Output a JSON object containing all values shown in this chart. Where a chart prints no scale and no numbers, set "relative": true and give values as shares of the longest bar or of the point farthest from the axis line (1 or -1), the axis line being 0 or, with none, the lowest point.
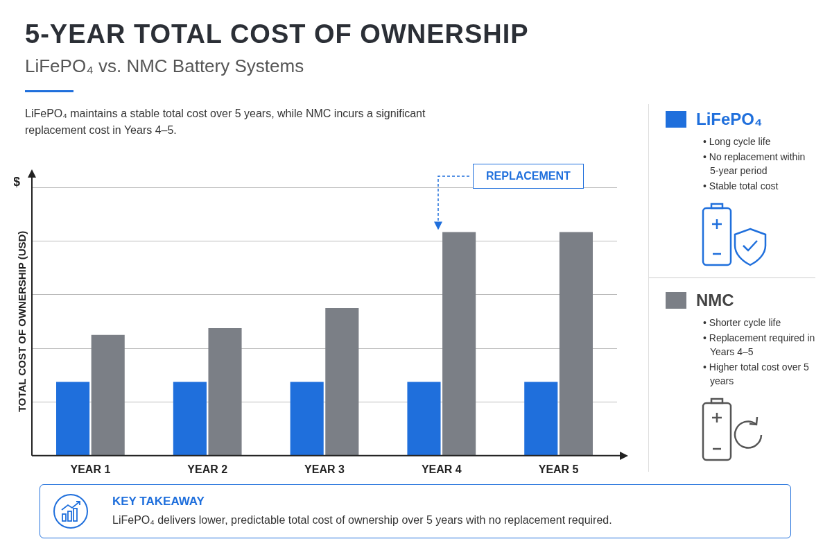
{
  "chart_data": {
    "type": "bar",
    "title": "5-YEAR TOTAL COST OF OWNERSHIP",
    "subtitle": "LiFePO₄ vs. NMC Battery Systems",
    "ylabel": "TOTAL COST OF OWNERSHIP (USD)",
    "relative": true,
    "grid": "y",
    "legend": "right",
    "categories": [
      "YEAR 1",
      "YEAR 2",
      "YEAR 3",
      "YEAR 4",
      "YEAR 5"
    ],
    "series": [
      {
        "name": "LiFePO₄",
        "color": "#1f6fdc",
        "values": [
          0.33,
          0.33,
          0.33,
          0.33,
          0.33
        ]
      },
      {
        "name": "NMC",
        "color": "#7b7f86",
        "values": [
          0.54,
          0.57,
          0.66,
          1.0,
          1.0
        ]
      }
    ],
    "annotations": [
      "LiFePO₄ maintains a stable total cost over 5 years, while NMC incurs a significant replacement cost in Years 4–5.",
      "$",
      "REPLACEMENT",
      "• Long cycle life",
      "• No replacement within 5-year period",
      "• Stable total cost",
      "• Shorter cycle life",
      "• Replacement required in Years 4–5",
      "• Higher total cost over 5 years",
      "KEY TAKEAWAY",
      "LiFePO₄ delivers lower, predictable total cost of ownership over 5 years with no replacement required."
    ]
  }
}
